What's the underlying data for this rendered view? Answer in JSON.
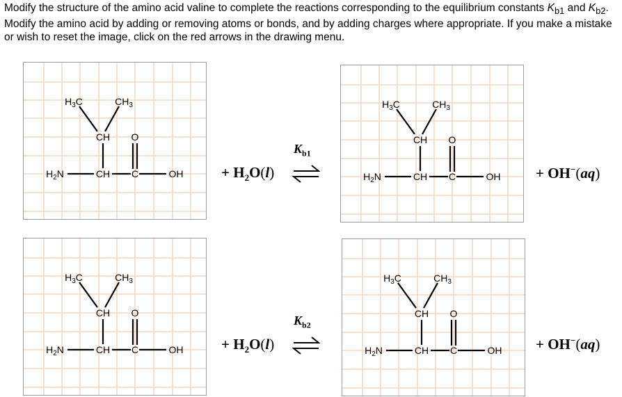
{
  "instructions": {
    "p1": "Modify the structure of the amino acid valine to complete the reactions corresponding to the equilibrium constants ",
    "k1": "K",
    "k1sub": "b1",
    "p2": " and ",
    "k2": "K",
    "k2sub": "b2",
    "p3": ". Modify the amino acid by adding or removing atoms or bonds, and by adding charges where appropriate. If you make a mistake or wish to reset the image, click on the red arrows in the drawing menu."
  },
  "molecule": {
    "h3c": "H3C",
    "ch3": "CH3",
    "ch_top": "CH",
    "o": "O",
    "h2n": "H2N",
    "ch_mid": "CH",
    "c": "C",
    "oh": "OH"
  },
  "reactions": [
    {
      "reactant": "+ H2O(l)",
      "k_symbol": "K",
      "k_sub": "b1",
      "product": "+ OH⁻(aq)"
    },
    {
      "reactant": "+ H2O(l)",
      "k_symbol": "K",
      "k_sub": "b2",
      "product": "+ OH⁻(aq)"
    }
  ],
  "colors": {
    "grid": "#f5d9bf",
    "border": "#999999"
  }
}
